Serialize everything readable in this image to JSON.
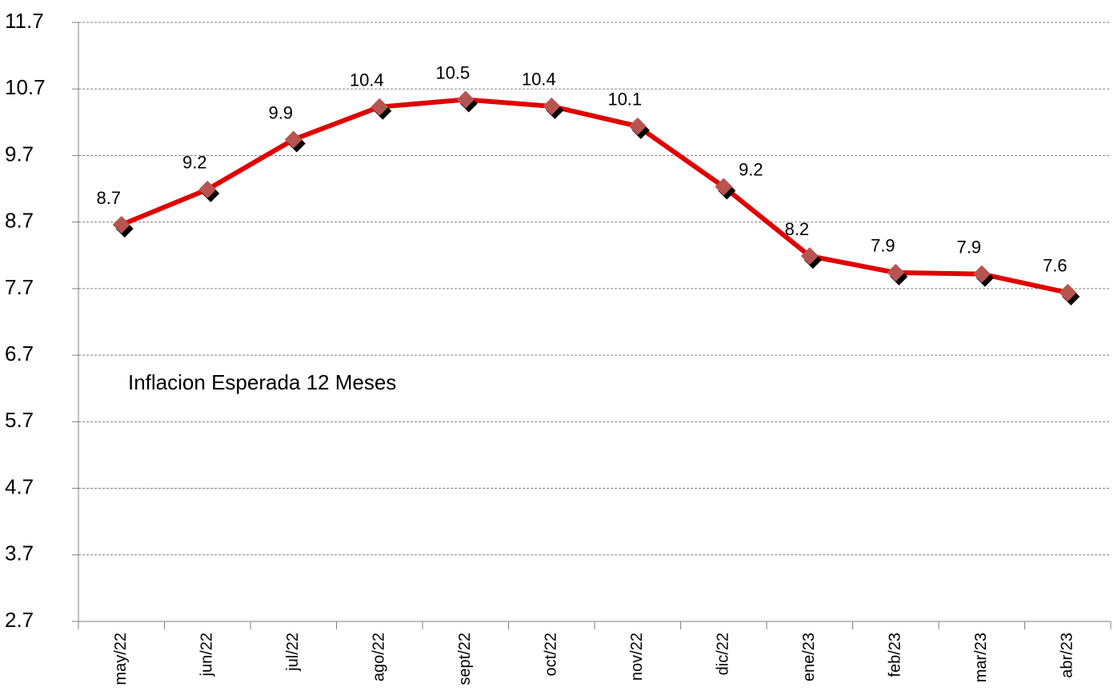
{
  "chart_data": {
    "type": "line",
    "annotation": "Inflacion Esperada 12 Meses",
    "categories": [
      "may/22",
      "jun/22",
      "jul/22",
      "ago/22",
      "sept/22",
      "oct/22",
      "nov/22",
      "dic/22",
      "ene/23",
      "feb/23",
      "mar/23",
      "abr/23"
    ],
    "series": [
      {
        "color": "#e00000",
        "marker_color": "#b85450",
        "values": [
          8.66,
          9.19,
          9.94,
          10.43,
          10.54,
          10.44,
          10.14,
          9.23,
          8.19,
          7.94,
          7.92,
          7.64
        ],
        "value_labels": [
          "8.7",
          "9.2",
          "9.9",
          "10.4",
          "10.5",
          "10.4",
          "10.1",
          "9.2",
          "8.2",
          "7.9",
          "7.9",
          "7.6"
        ]
      }
    ],
    "ylim": [
      2.7,
      11.7
    ],
    "yticks": [
      2.7,
      3.7,
      4.7,
      5.7,
      6.7,
      7.7,
      8.7,
      9.7,
      10.7,
      11.7
    ],
    "grid": true
  }
}
